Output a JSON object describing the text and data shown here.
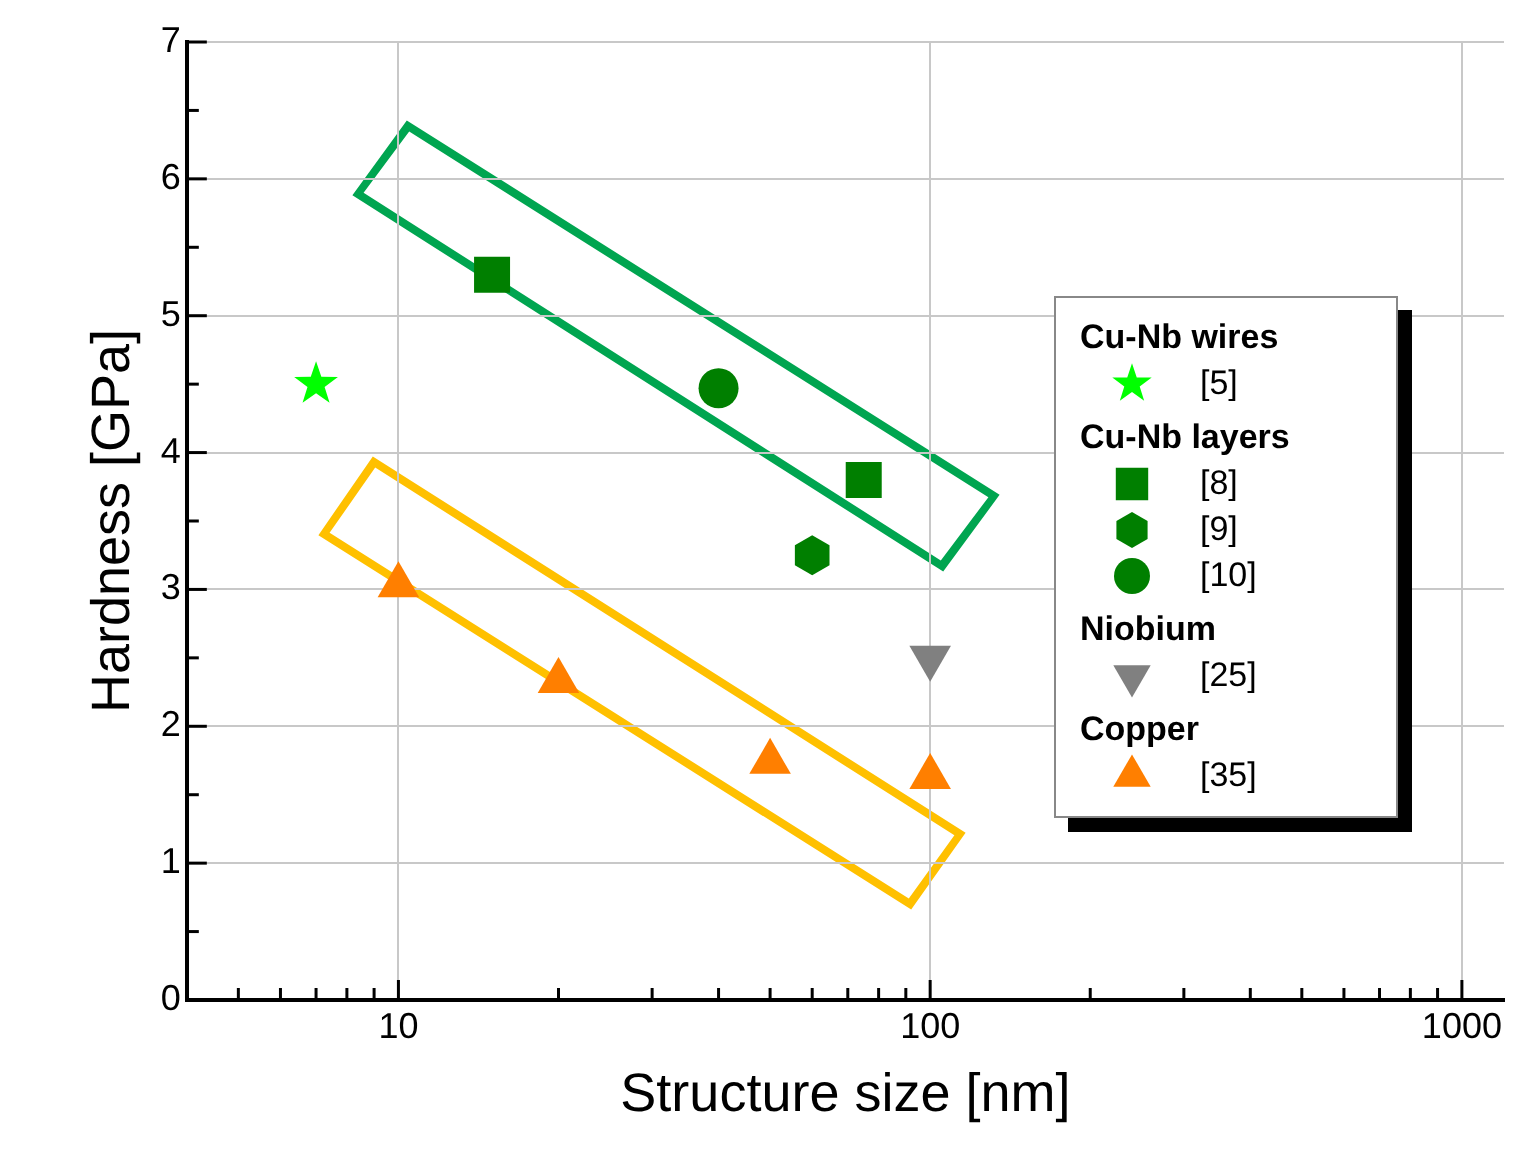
{
  "chart_data": {
    "type": "scatter",
    "xlabel": "Structure size [nm]",
    "ylabel": "Hardness [GPa]",
    "log": "x",
    "grid": true,
    "legend": "right",
    "xlim": [
      4,
      1200
    ],
    "ylim": [
      0,
      7
    ],
    "xticks": [
      {
        "value": 5,
        "label": null
      },
      {
        "value": 6,
        "label": null
      },
      {
        "value": 7,
        "label": null
      },
      {
        "value": 8,
        "label": null
      },
      {
        "value": 9,
        "label": null
      },
      10,
      {
        "value": 20,
        "label": null
      },
      {
        "value": 30,
        "label": null
      },
      {
        "value": 40,
        "label": null
      },
      {
        "value": 50,
        "label": null
      },
      {
        "value": 60,
        "label": null
      },
      {
        "value": 70,
        "label": null
      },
      {
        "value": 80,
        "label": null
      },
      {
        "value": 90,
        "label": null
      },
      100,
      {
        "value": 200,
        "label": null
      },
      {
        "value": 300,
        "label": null
      },
      {
        "value": 400,
        "label": null
      },
      {
        "value": 500,
        "label": null
      },
      {
        "value": 600,
        "label": null
      },
      {
        "value": 700,
        "label": null
      },
      {
        "value": 800,
        "label": null
      },
      {
        "value": 900,
        "label": null
      },
      1000
    ],
    "yticks": [
      0,
      {
        "value": 0.5,
        "label": null
      },
      1,
      {
        "value": 1.5,
        "label": null
      },
      2,
      {
        "value": 2.5,
        "label": null
      },
      3,
      {
        "value": 3.5,
        "label": null
      },
      4,
      {
        "value": 4.5,
        "label": null
      },
      5,
      {
        "value": 5.5,
        "label": null
      },
      6,
      {
        "value": 6.5,
        "label": null
      },
      7
    ],
    "annotations": [
      "Cu-Nb wires",
      "Cu-Nb layers",
      "Niobium",
      "Copper"
    ],
    "series": [
      {
        "name": "[5]",
        "color": "#00ff00",
        "marker": "star",
        "x": [
          7
        ],
        "values": [
          4.5
        ]
      },
      {
        "name": "[8]",
        "color": "#007f00",
        "marker": "square",
        "x": [
          15,
          75
        ],
        "values": [
          5.3,
          3.8
        ]
      },
      {
        "name": "[9]",
        "color": "#007f00",
        "x": [
          60
        ],
        "values": [
          3.25
        ]
      },
      {
        "name": "[10]",
        "color": "#007f00",
        "marker": "circle",
        "x": [
          40
        ],
        "values": [
          4.47
        ]
      },
      {
        "name": "[25]",
        "color": "#808080",
        "marker": "triangle_down",
        "x": [
          100
        ],
        "values": [
          2.5
        ]
      },
      {
        "name": "[35]",
        "color": "#ff7f00",
        "marker": "triangle",
        "x": [
          10,
          20,
          50,
          100
        ],
        "values": [
          3.03,
          2.33,
          1.74,
          1.63
        ]
      }
    ]
  }
}
